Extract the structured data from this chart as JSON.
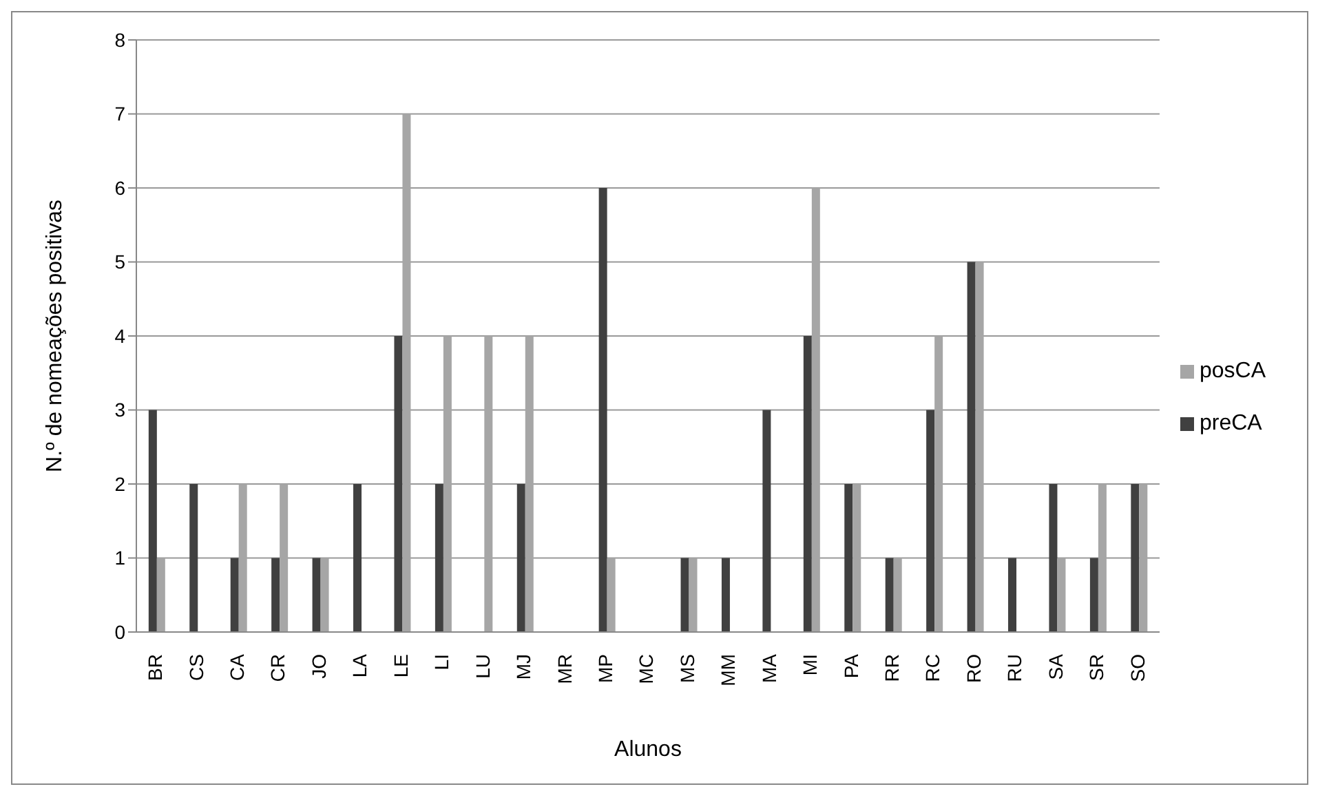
{
  "chart_data": {
    "type": "bar",
    "xlabel": "Alunos",
    "ylabel": "N.º de nomeações positivas",
    "categories": [
      "BR",
      "CS",
      "CA",
      "CR",
      "JO",
      "LA",
      "LE",
      "LI",
      "LU",
      "MJ",
      "MR",
      "MP",
      "MC",
      "MS",
      "MM",
      "MA",
      "MI",
      "PA",
      "RR",
      "RC",
      "RO",
      "RU",
      "SA",
      "SR",
      "SO"
    ],
    "series": [
      {
        "name": "preCA",
        "color": "#404040",
        "values": [
          3,
          2,
          1,
          1,
          1,
          2,
          4,
          2,
          0,
          2,
          0,
          6,
          0,
          1,
          1,
          3,
          4,
          2,
          1,
          3,
          5,
          1,
          2,
          1,
          2
        ]
      },
      {
        "name": "posCA",
        "color": "#a6a6a6",
        "values": [
          1,
          0,
          2,
          2,
          1,
          0,
          7,
          4,
          4,
          4,
          0,
          1,
          0,
          1,
          0,
          0,
          6,
          2,
          1,
          4,
          5,
          0,
          1,
          2,
          2
        ]
      }
    ],
    "ylim": [
      0,
      8
    ],
    "yticks": [
      0,
      1,
      2,
      3,
      4,
      5,
      6,
      7,
      8
    ],
    "grid": "y",
    "legend": "right"
  }
}
